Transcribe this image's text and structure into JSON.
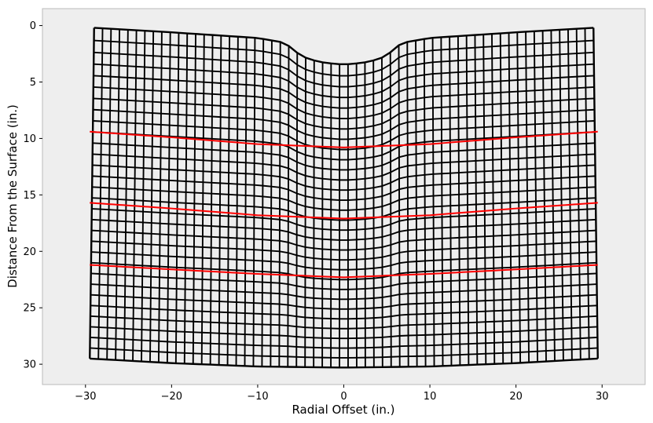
{
  "chart_data": {
    "type": "line",
    "title": "",
    "xlabel": "Radial Offset (in.)",
    "ylabel": "Distance From the Surface (in.)",
    "xlim": [
      -35,
      35
    ],
    "ylim": [
      31.8,
      -1.5
    ],
    "y_inverted": true,
    "grid": false,
    "xticks": [
      -30,
      -20,
      -10,
      0,
      10,
      20,
      30
    ],
    "xtick_labels": [
      "−30",
      "−20",
      "−10",
      "0",
      "10",
      "20",
      "30"
    ],
    "yticks": [
      0,
      5,
      10,
      15,
      20,
      25,
      30
    ],
    "ytick_labels": [
      "0",
      "5",
      "10",
      "15",
      "20",
      "25",
      "30"
    ],
    "colors": {
      "plot_background": "#eeeeee",
      "mesh": "#000000",
      "layer_interfaces": "#ff0000"
    },
    "mesh": {
      "x_range": [
        -29.5,
        29.5
      ],
      "depth_range": [
        0,
        30
      ],
      "columns": 59,
      "rows": 30,
      "top_surface_profile": {
        "x": [
          -29.0,
          -20.0,
          -10.0,
          -7.0,
          -6.0,
          -5.0,
          -3.0,
          -1.0,
          0.0,
          1.0,
          3.0,
          5.0,
          6.0,
          7.0,
          10.0,
          20.0,
          29.0
        ],
        "y": [
          0.2,
          0.6,
          1.1,
          1.5,
          2.0,
          2.7,
          3.2,
          3.4,
          3.45,
          3.4,
          3.2,
          2.7,
          1.9,
          1.5,
          1.1,
          0.6,
          0.2
        ]
      },
      "bottom_surface_profile": {
        "x": [
          -29.5,
          -20.0,
          -10.0,
          0.0,
          10.0,
          20.0,
          29.5
        ],
        "y": [
          29.5,
          29.9,
          30.2,
          30.3,
          30.2,
          29.9,
          29.5
        ]
      }
    },
    "series": [
      {
        "x": [
          -29.5,
          -20.0,
          -10.0,
          0.0,
          10.0,
          20.0,
          29.5
        ],
        "y": [
          9.4,
          9.9,
          10.5,
          10.8,
          10.5,
          9.9,
          9.4
        ]
      },
      {
        "x": [
          -29.5,
          -20.0,
          -10.0,
          0.0,
          10.0,
          20.0,
          29.5
        ],
        "y": [
          15.7,
          16.2,
          16.8,
          17.1,
          16.8,
          16.2,
          15.7
        ]
      },
      {
        "x": [
          -29.5,
          -20.0,
          -10.0,
          0.0,
          10.0,
          20.0,
          29.5
        ],
        "y": [
          21.2,
          21.6,
          22.0,
          22.3,
          22.0,
          21.6,
          21.2
        ]
      }
    ]
  }
}
